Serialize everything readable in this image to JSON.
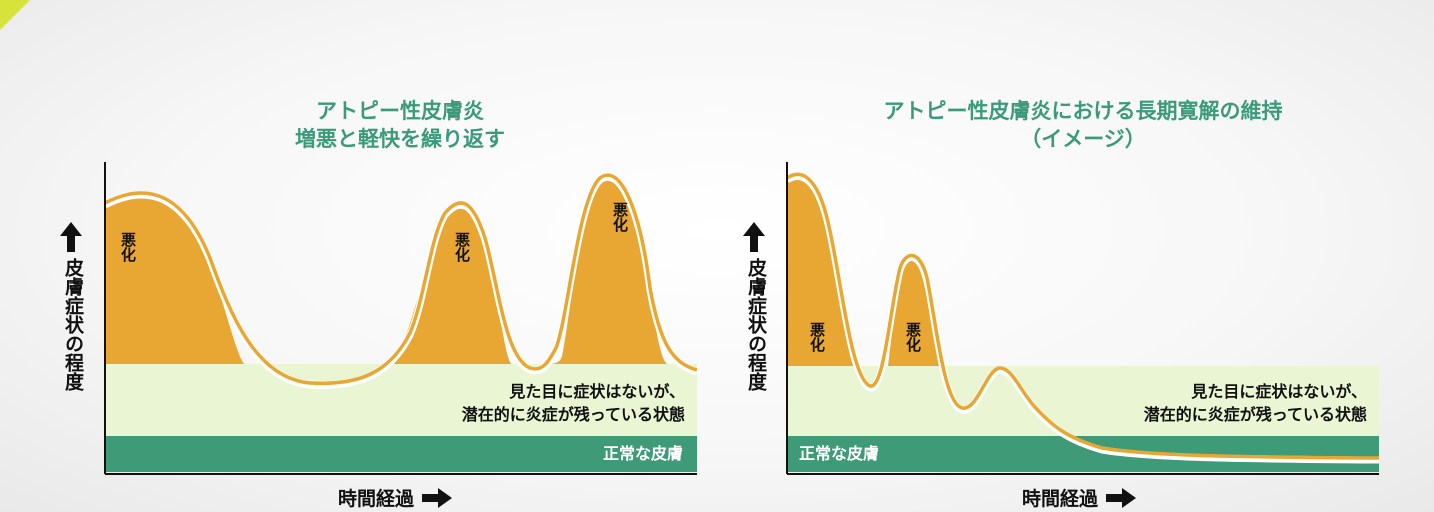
{
  "accent_color": "#3a9a7a",
  "flare_color": "#e8a632",
  "latent_color": "#eaf5d4",
  "normal_color": "#3f9a78",
  "left": {
    "title": "アトピー性皮膚炎\n増悪と軽快を繰り返す",
    "y_axis_label": "皮膚症状の程度",
    "x_axis_label": "時間経過",
    "flare_label": "悪化",
    "latent_text_1": "見た目に症状はないが、",
    "latent_text_2": "潜在的に炎症が残っている状態",
    "normal_label": "正常な皮膚"
  },
  "right": {
    "title": "アトピー性皮膚炎における長期寛解の維持\n（イメージ）",
    "y_axis_label": "皮膚症状の程度",
    "x_axis_label": "時間経過",
    "flare_label": "悪化",
    "latent_text_1": "見た目に症状はないが、",
    "latent_text_2": "潜在的に炎症が残っている状態",
    "normal_label": "正常な皮膚"
  }
}
